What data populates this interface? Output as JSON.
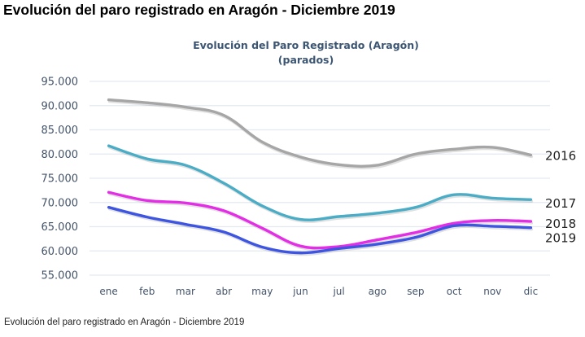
{
  "page": {
    "title": "Evolución del paro registrado en Aragón - Diciembre 2019",
    "caption": "Evolución del paro registrado en Aragón - Diciembre 2019"
  },
  "chart_data": {
    "type": "line",
    "title": "Evolución del Paro Registrado (Aragón)",
    "subtitle": "(parados)",
    "xlabel": "",
    "ylabel": "",
    "categories": [
      "ene",
      "feb",
      "mar",
      "abr",
      "may",
      "jun",
      "jul",
      "ago",
      "sep",
      "oct",
      "nov",
      "dic"
    ],
    "ylim": [
      55000,
      95000
    ],
    "yticks": [
      95000,
      90000,
      85000,
      80000,
      75000,
      70000,
      65000,
      60000,
      55000
    ],
    "ytick_labels": [
      "95.000",
      "90.000",
      "85.000",
      "80.000",
      "75.000",
      "70.000",
      "65.000",
      "60.000",
      "55.000"
    ],
    "grid": true,
    "legend": "right (labels at line ends)",
    "series": [
      {
        "name": "2016",
        "color": "#a6a6a6",
        "values": [
          91200,
          90600,
          89700,
          88000,
          82500,
          79400,
          77800,
          77700,
          80000,
          81000,
          81400,
          79800
        ]
      },
      {
        "name": "2017",
        "color": "#4bacc6",
        "values": [
          81700,
          79000,
          77700,
          74000,
          69300,
          66500,
          67100,
          67800,
          69000,
          71600,
          70900,
          70600
        ]
      },
      {
        "name": "2018",
        "color": "#e42ee6",
        "values": [
          72100,
          70400,
          69900,
          68300,
          64700,
          61000,
          60900,
          62300,
          63800,
          65700,
          66300,
          66100
        ]
      },
      {
        "name": "2019",
        "color": "#3d55e0",
        "values": [
          69000,
          67000,
          65500,
          63900,
          60800,
          59600,
          60500,
          61400,
          62800,
          65200,
          65100,
          64800
        ]
      }
    ]
  }
}
